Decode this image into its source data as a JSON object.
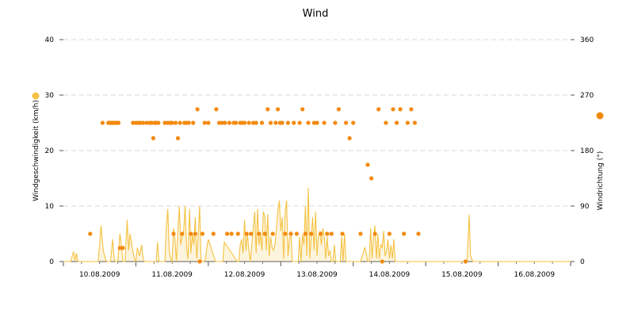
{
  "chart_data": {
    "type": "line",
    "title": "Wind",
    "x_tick_labels": [
      "10.08.2009",
      "11.08.2009",
      "12.08.2009",
      "13.08.2009",
      "14.08.2009",
      "15.08.2009",
      "16.08.2009"
    ],
    "xlim": [
      0,
      7
    ],
    "y_left": {
      "label": "Windgeschwindigkeit (km/h)",
      "ylim": [
        0,
        40
      ],
      "ticks": [
        0,
        10,
        20,
        30,
        40
      ]
    },
    "y_right": {
      "label": "Windrichtung (°)",
      "ylim": [
        0,
        360
      ],
      "ticks": [
        0,
        90,
        180,
        270,
        360
      ]
    },
    "grid": "horizontal dashed",
    "series": [
      {
        "axis": "left",
        "style": "area-line",
        "color": "#f5c242",
        "x": [
          0.0,
          0.05,
          0.1,
          0.14,
          0.16,
          0.18,
          0.2,
          0.3,
          0.48,
          0.5,
          0.52,
          0.55,
          0.58,
          0.6,
          0.65,
          0.68,
          0.7,
          0.72,
          0.75,
          0.78,
          0.8,
          0.82,
          0.85,
          0.88,
          0.9,
          0.92,
          0.95,
          0.98,
          1.0,
          1.02,
          1.05,
          1.08,
          1.1,
          1.12,
          1.15,
          1.18,
          1.2,
          1.22,
          1.24,
          1.26,
          1.28,
          1.3,
          1.32,
          1.34,
          1.36,
          1.38,
          1.4,
          1.42,
          1.44,
          1.46,
          1.48,
          1.5,
          1.52,
          1.54,
          1.56,
          1.58,
          1.6,
          1.62,
          1.64,
          1.66,
          1.68,
          1.7,
          1.72,
          1.74,
          1.76,
          1.78,
          1.8,
          1.82,
          1.84,
          1.86,
          1.88,
          1.9,
          1.92,
          1.94,
          1.96,
          1.98,
          2.0,
          2.1,
          2.18,
          2.2,
          2.22,
          2.4,
          2.42,
          2.44,
          2.46,
          2.48,
          2.5,
          2.52,
          2.54,
          2.56,
          2.58,
          2.6,
          2.62,
          2.64,
          2.66,
          2.68,
          2.7,
          2.72,
          2.74,
          2.76,
          2.78,
          2.8,
          2.82,
          2.84,
          2.86,
          2.88,
          2.9,
          2.92,
          2.94,
          2.96,
          2.98,
          3.0,
          3.02,
          3.04,
          3.06,
          3.08,
          3.1,
          3.12,
          3.14,
          3.16,
          3.18,
          3.2,
          3.22,
          3.24,
          3.26,
          3.28,
          3.3,
          3.32,
          3.34,
          3.36,
          3.38,
          3.4,
          3.42,
          3.44,
          3.46,
          3.48,
          3.5,
          3.52,
          3.54,
          3.56,
          3.58,
          3.6,
          3.62,
          3.64,
          3.66,
          3.68,
          3.7,
          3.72,
          3.74,
          3.76,
          3.78,
          3.8,
          3.82,
          3.84,
          3.86,
          3.88,
          3.9,
          3.92,
          3.94,
          3.96,
          3.98,
          4.0,
          4.05,
          4.1,
          4.16,
          4.18,
          4.2,
          4.22,
          4.24,
          4.26,
          4.28,
          4.3,
          4.32,
          4.34,
          4.36,
          4.38,
          4.4,
          4.42,
          4.44,
          4.46,
          4.48,
          4.5,
          4.52,
          4.54,
          4.56,
          4.58,
          4.6,
          4.62,
          4.64,
          4.66,
          4.68,
          4.7,
          4.72,
          4.74,
          4.76,
          4.78,
          4.8,
          5.0,
          5.4,
          5.5,
          5.52,
          5.55,
          5.57,
          5.6,
          5.62,
          5.65,
          5.7,
          6.0,
          7.0
        ],
        "values": [
          0,
          0,
          0,
          1.8,
          0.2,
          1.5,
          0,
          0,
          0,
          3.0,
          6.5,
          2.0,
          0.5,
          0,
          0,
          4.0,
          0.5,
          0,
          0,
          5.0,
          3.0,
          0,
          0,
          7.5,
          2.0,
          5.0,
          2.5,
          0.5,
          0,
          2.5,
          1.0,
          3.0,
          0.5,
          0,
          0,
          0,
          0,
          0,
          0,
          0,
          0,
          3.5,
          0,
          0,
          0,
          0,
          0,
          6.0,
          9.5,
          2.0,
          0.5,
          0,
          6.0,
          4.0,
          0,
          5.5,
          10.0,
          3.0,
          4.5,
          5.5,
          10.0,
          2.5,
          0.5,
          9.5,
          1.5,
          5.0,
          3.0,
          8.0,
          0.5,
          4.5,
          10.0,
          0.3,
          0,
          0,
          0.5,
          2.5,
          4.0,
          0,
          0,
          0,
          3.5,
          0,
          0,
          3.0,
          4.0,
          1.5,
          7.5,
          2.0,
          5.0,
          2.0,
          0,
          3.0,
          6.0,
          9.0,
          1.5,
          9.5,
          3.0,
          5.0,
          2.0,
          9.0,
          8.0,
          2.0,
          8.5,
          1.0,
          4.5,
          2.5,
          2.0,
          3.0,
          6.0,
          9.0,
          11.0,
          5.5,
          8.0,
          0.5,
          9.0,
          11.0,
          1.0,
          4.0,
          5.5,
          0,
          0,
          0,
          0,
          0,
          4.5,
          0,
          5.0,
          3.0,
          10.0,
          1.0,
          13.3,
          0.5,
          4.5,
          8.0,
          2.0,
          9.0,
          1.0,
          4.5,
          5.5,
          3.0,
          6.0,
          4.5,
          0.5,
          4.5,
          1.0,
          2.0,
          0,
          0,
          3.0,
          0,
          0,
          0,
          0,
          4.5,
          0,
          5.0,
          0,
          0,
          0,
          0,
          0,
          0,
          0,
          0,
          2.5,
          1.5,
          0,
          0,
          6.0,
          0.5,
          4.5,
          6.5,
          0.5,
          5.0,
          0.5,
          3.0,
          2.5,
          5.5,
          1.0,
          2.0,
          4.0,
          0.5,
          3.0,
          0.5,
          4.0,
          0,
          0,
          0,
          0,
          0,
          0,
          0,
          0,
          0,
          0,
          0,
          0,
          0,
          0,
          0,
          0,
          0,
          0,
          8.5,
          1.0,
          0,
          0,
          0,
          0
        ]
      },
      {
        "axis": "right",
        "style": "scatter",
        "color": "#f28a0f",
        "x": [
          0.37,
          0.54,
          0.62,
          0.64,
          0.66,
          0.68,
          0.7,
          0.72,
          0.74,
          0.76,
          0.78,
          0.82,
          0.96,
          1.0,
          1.03,
          1.06,
          1.1,
          1.15,
          1.19,
          1.22,
          1.24,
          1.26,
          1.28,
          1.31,
          1.4,
          1.44,
          1.47,
          1.5,
          1.52,
          1.55,
          1.58,
          1.61,
          1.64,
          1.67,
          1.7,
          1.73,
          1.76,
          1.79,
          1.82,
          1.85,
          1.88,
          1.92,
          1.95,
          2.0,
          2.07,
          2.11,
          2.15,
          2.19,
          2.23,
          2.26,
          2.29,
          2.32,
          2.35,
          2.38,
          2.41,
          2.44,
          2.47,
          2.5,
          2.53,
          2.56,
          2.59,
          2.62,
          2.66,
          2.7,
          2.74,
          2.78,
          2.82,
          2.86,
          2.89,
          2.93,
          2.96,
          2.99,
          3.02,
          3.06,
          3.1,
          3.14,
          3.18,
          3.22,
          3.26,
          3.3,
          3.34,
          3.38,
          3.42,
          3.46,
          3.5,
          3.55,
          3.6,
          3.64,
          3.7,
          3.75,
          3.8,
          3.85,
          3.9,
          3.95,
          4.0,
          4.1,
          4.2,
          4.25,
          4.3,
          4.35,
          4.4,
          4.45,
          4.5,
          4.55,
          4.6,
          4.65,
          4.7,
          4.75,
          4.8,
          4.85,
          4.9,
          5.55
        ],
        "values": [
          45,
          225,
          225,
          225,
          225,
          225,
          225,
          225,
          225,
          225,
          22,
          22,
          225,
          225,
          225,
          225,
          225,
          225,
          225,
          225,
          200,
          225,
          225,
          225,
          225,
          225,
          225,
          225,
          45,
          225,
          200,
          225,
          45,
          225,
          225,
          225,
          45,
          225,
          45,
          247,
          0,
          45,
          225,
          225,
          45,
          247,
          225,
          225,
          225,
          45,
          225,
          45,
          225,
          225,
          45,
          225,
          225,
          225,
          45,
          225,
          45,
          225,
          225,
          45,
          225,
          45,
          247,
          225,
          45,
          225,
          247,
          225,
          225,
          45,
          225,
          45,
          225,
          45,
          225,
          247,
          45,
          225,
          45,
          225,
          225,
          45,
          225,
          45,
          45,
          225,
          247,
          45,
          225,
          200,
          225,
          45,
          157,
          135,
          45,
          247,
          0,
          225,
          45,
          247,
          225,
          247,
          45,
          225,
          247,
          225,
          45,
          0
        ]
      }
    ]
  }
}
